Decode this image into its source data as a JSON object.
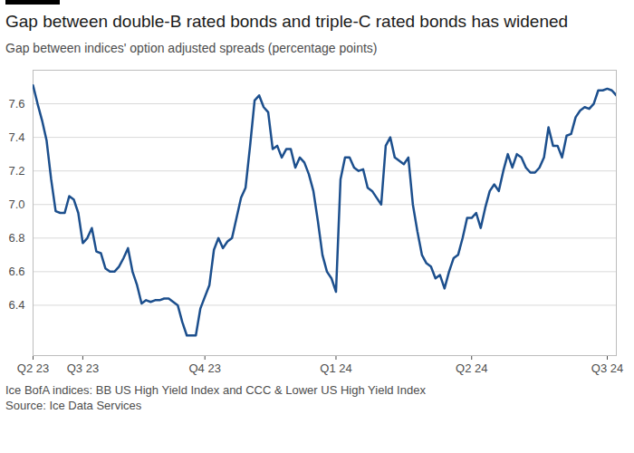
{
  "chart_data": {
    "type": "line",
    "title": "Gap between double-B rated bonds and triple-C rated bonds has widened",
    "subtitle": "Gap between indices' option adjusted spreads (percentage points)",
    "caption": "Ice BofA indices: BB US High Yield Index and CCC & Lower US High Yield Index",
    "source": "Source: Ice Data Services",
    "color": "#1c4f8d",
    "grid": true,
    "categories": [
      "Q2 23",
      null,
      null,
      null,
      null,
      null,
      null,
      null,
      null,
      null,
      null,
      "Q3 23",
      null,
      null,
      null,
      null,
      null,
      null,
      null,
      null,
      null,
      null,
      null,
      null,
      null,
      null,
      null,
      null,
      null,
      null,
      null,
      null,
      null,
      null,
      null,
      null,
      null,
      null,
      "Q4 23",
      null,
      null,
      null,
      null,
      null,
      null,
      null,
      null,
      null,
      null,
      null,
      null,
      null,
      null,
      null,
      null,
      null,
      null,
      null,
      null,
      null,
      null,
      null,
      null,
      null,
      null,
      null,
      null,
      "Q1 24",
      null,
      null,
      null,
      null,
      null,
      null,
      null,
      null,
      null,
      null,
      null,
      null,
      null,
      null,
      null,
      null,
      null,
      null,
      null,
      null,
      null,
      null,
      null,
      null,
      null,
      null,
      null,
      null,
      null,
      "Q2 24",
      null,
      null,
      null,
      null,
      null,
      null,
      null,
      null,
      null,
      null,
      null,
      null,
      null,
      null,
      null,
      null,
      null,
      null,
      null,
      null,
      null,
      null,
      null,
      null,
      null,
      null,
      null,
      null,
      null,
      "Q3 24",
      null,
      null
    ],
    "values": [
      7.71,
      7.6,
      7.5,
      7.38,
      7.15,
      6.96,
      6.95,
      6.95,
      7.05,
      7.03,
      6.95,
      6.77,
      6.8,
      6.86,
      6.72,
      6.71,
      6.62,
      6.6,
      6.6,
      6.63,
      6.68,
      6.74,
      6.6,
      6.52,
      6.41,
      6.43,
      6.42,
      6.43,
      6.43,
      6.44,
      6.44,
      6.42,
      6.4,
      6.3,
      6.22,
      6.22,
      6.22,
      6.38,
      6.45,
      6.52,
      6.73,
      6.8,
      6.74,
      6.78,
      6.8,
      6.92,
      7.04,
      7.1,
      7.35,
      7.62,
      7.65,
      7.58,
      7.55,
      7.33,
      7.35,
      7.28,
      7.33,
      7.33,
      7.22,
      7.28,
      7.25,
      7.18,
      7.08,
      6.9,
      6.7,
      6.6,
      6.56,
      6.48,
      7.15,
      7.28,
      7.28,
      7.22,
      7.2,
      7.21,
      7.1,
      7.08,
      7.04,
      7.0,
      7.35,
      7.4,
      7.28,
      7.26,
      7.24,
      7.28,
      7.0,
      6.84,
      6.7,
      6.65,
      6.63,
      6.56,
      6.58,
      6.5,
      6.6,
      6.68,
      6.7,
      6.8,
      6.92,
      6.92,
      6.95,
      6.86,
      6.98,
      7.08,
      7.12,
      7.08,
      7.2,
      7.3,
      7.22,
      7.3,
      7.28,
      7.22,
      7.19,
      7.19,
      7.22,
      7.28,
      7.46,
      7.35,
      7.35,
      7.28,
      7.41,
      7.42,
      7.52,
      7.56,
      7.58,
      7.57,
      7.6,
      7.68,
      7.68,
      7.69,
      7.68,
      7.65
    ],
    "ylim": [
      6.1,
      7.8
    ],
    "yticks": [
      6.4,
      6.6,
      6.8,
      {
        "value": 7,
        "label": "7.0"
      },
      7.2,
      7.4,
      7.6
    ]
  }
}
